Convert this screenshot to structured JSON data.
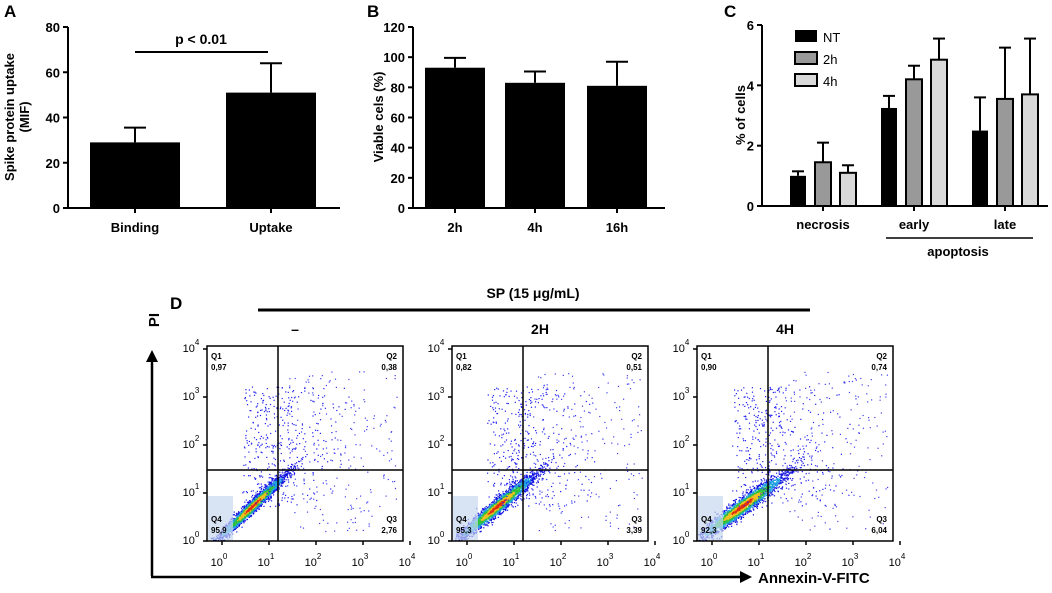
{
  "panels": {
    "a": "A",
    "b": "B",
    "c": "C",
    "d": "D"
  },
  "chart_data": [
    {
      "type": "bar",
      "panel": "A",
      "categories": [
        "Binding",
        "Uptake"
      ],
      "values": [
        29,
        51
      ],
      "errors": [
        6.5,
        13
      ],
      "ylabel": "Spike protein uptake (MIF)",
      "ylim": [
        0,
        80
      ],
      "yticks": [
        0,
        20,
        40,
        60,
        80
      ],
      "annotation": "p < 0.01",
      "color": "#000000"
    },
    {
      "type": "bar",
      "panel": "B",
      "categories": [
        "2h",
        "4h",
        "16h"
      ],
      "values": [
        93,
        83,
        81
      ],
      "errors": [
        6.5,
        7.5,
        16
      ],
      "ylabel": "Viable cels (%)",
      "ylim": [
        0,
        120
      ],
      "yticks": [
        0,
        20,
        40,
        60,
        80,
        100,
        120
      ],
      "color": "#000000"
    },
    {
      "type": "bar",
      "panel": "C",
      "categories": [
        "necrosis",
        "early",
        "late"
      ],
      "group_label": "apoptosis",
      "ylabel": "% of cells",
      "ylim": [
        0,
        6
      ],
      "yticks": [
        0,
        2,
        4,
        6
      ],
      "legend": "top-left",
      "series": [
        {
          "name": "NT",
          "color": "#000000",
          "values": [
            1.0,
            3.25,
            2.5
          ],
          "errors": [
            0.15,
            0.4,
            1.1
          ]
        },
        {
          "name": "2h",
          "color": "#999999",
          "values": [
            1.45,
            4.2,
            3.55
          ],
          "errors": [
            0.65,
            0.45,
            1.7
          ]
        },
        {
          "name": "4h",
          "color": "#d9d9d9",
          "values": [
            1.1,
            4.85,
            3.7
          ],
          "errors": [
            0.25,
            0.7,
            1.85
          ]
        }
      ]
    },
    {
      "type": "scatter",
      "panel": "D",
      "title": "SP (15 μg/mL)",
      "xlabel": "Annexin-V-FITC",
      "ylabel": "PI",
      "xscale": "log",
      "yscale": "log",
      "xlim": [
        1,
        10000
      ],
      "ylim": [
        1,
        10000
      ],
      "tick_labels": [
        "10",
        "10",
        "10",
        "10",
        "10"
      ],
      "tick_exponents": [
        "0",
        "1",
        "2",
        "3",
        "4"
      ],
      "plots": [
        {
          "label": "–",
          "quadrants": {
            "Q1": "0,97",
            "Q2": "0,38",
            "Q3": "2,76",
            "Q4": "95,9"
          }
        },
        {
          "label": "2H",
          "quadrants": {
            "Q1": "0,82",
            "Q2": "0,51",
            "Q3": "3,39",
            "Q4": "95,3"
          }
        },
        {
          "label": "4H",
          "quadrants": {
            "Q1": "0,90",
            "Q2": "0,74",
            "Q3": "6,04",
            "Q4": "92,3"
          }
        }
      ]
    }
  ]
}
